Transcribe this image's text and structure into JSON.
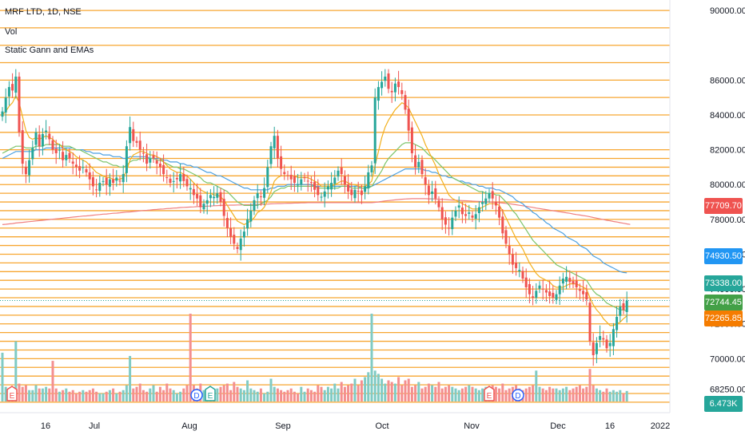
{
  "legend": {
    "symbol": "MRF LTD, 1D, NSE",
    "volume": "Vol",
    "indicator": "Static Gann and EMAs"
  },
  "colors": {
    "up": "#26a69a",
    "down": "#ef5350",
    "vol_up": "#80cbc4",
    "vol_down": "#f48f8f",
    "gann": "#f7a630",
    "ema_short": "#f2b01e",
    "ema_mid": "#7cc46b",
    "ema_long": "#4a9fe0",
    "ema_200": "#f08080"
  },
  "price_tags": [
    {
      "label": "77709.70",
      "value": 77709.7,
      "color": "#ef5350"
    },
    {
      "label": "74930.50",
      "value": 74930.5,
      "color": "#2196f3"
    },
    {
      "label": "73338.00",
      "value": 73338.0,
      "color": "#26a69a"
    },
    {
      "label": "72744.45",
      "value": 72744.45,
      "color": "#43a047"
    },
    {
      "label": "72265.85",
      "value": 72265.85,
      "color": "#f57c00"
    },
    {
      "label": "6.473K",
      "value": null,
      "color": "#26a69a"
    }
  ],
  "events": [
    {
      "label": "E",
      "type": "earnings",
      "color": "#ef5350",
      "x_label": "Jun 12"
    },
    {
      "label": "D",
      "type": "dividend",
      "color": "#2962ff",
      "x_label": "Aug 10"
    },
    {
      "label": "E",
      "type": "earnings",
      "color": "#26a69a",
      "x_label": "Aug 11"
    },
    {
      "label": "E",
      "type": "earnings",
      "color": "#ef5350",
      "x_label": "Nov 11"
    },
    {
      "label": "D",
      "type": "dividend",
      "color": "#2962ff",
      "x_label": "Nov 19"
    }
  ],
  "chart_data": {
    "type": "candlestick",
    "title": "MRF LTD, 1D, NSE",
    "x_ticks": [
      "16",
      "Jul",
      "Aug",
      "Sep",
      "Oct",
      "Nov",
      "Dec",
      "16",
      "2022"
    ],
    "y_ticks": [
      "90000.00",
      "86000.00",
      "84000.00",
      "82000.00",
      "80000.00",
      "78000.00",
      "76000.00",
      "74000.00",
      "72000.00",
      "70000.00",
      "68250.00"
    ],
    "y_range": [
      66900,
      90600
    ],
    "gann_levels": [
      90000,
      89000,
      88000,
      87000,
      86000,
      85000,
      84000,
      83000,
      82000,
      81500,
      81000,
      80500,
      80000,
      79500,
      79000,
      78500,
      78000,
      77500,
      77000,
      76500,
      76000,
      75500,
      75000,
      74500,
      74000,
      73500,
      73000,
      72500,
      72000,
      71500,
      71000,
      70500,
      70000,
      69500,
      69000,
      68500,
      68000,
      67500
    ],
    "close": [
      84200,
      85000,
      85600,
      85400,
      86200,
      83000,
      81200,
      80600,
      81400,
      82100,
      83000,
      82200,
      82900,
      83100,
      82600,
      82000,
      81800,
      82000,
      81400,
      81700,
      81500,
      81200,
      81000,
      80800,
      81000,
      80700,
      80300,
      79900,
      79700,
      80100,
      80200,
      80000,
      80300,
      80100,
      80400,
      80200,
      80600,
      82200,
      83300,
      82500,
      82400,
      82000,
      81800,
      81200,
      81500,
      81500,
      81200,
      81000,
      80600,
      80400,
      80100,
      80200,
      80300,
      80600,
      80200,
      79900,
      79800,
      79400,
      79200,
      78700,
      78900,
      79100,
      79400,
      79300,
      79500,
      79000,
      78200,
      77500,
      77000,
      76600,
      76300,
      76900,
      77300,
      78000,
      78500,
      79100,
      79500,
      79300,
      79800,
      81000,
      82200,
      82800,
      81500,
      80900,
      80600,
      80500,
      80300,
      80100,
      80000,
      80300,
      80400,
      80200,
      80100,
      79700,
      79400,
      79300,
      79600,
      79900,
      80100,
      80400,
      80800,
      80600,
      80000,
      79600,
      79400,
      79700,
      79600,
      79400,
      79900,
      80700,
      81100,
      85000,
      85600,
      85900,
      86200,
      85500,
      85300,
      85800,
      85600,
      85200,
      84300,
      83100,
      81800,
      81000,
      81300,
      80600,
      80000,
      79400,
      79600,
      79200,
      78700,
      78000,
      77700,
      77500,
      78100,
      78500,
      78800,
      78300,
      78200,
      78400,
      78100,
      78300,
      78700,
      79000,
      79200,
      79500,
      79200,
      78800,
      78100,
      77200,
      76600,
      76000,
      75400,
      75200,
      75100,
      74600,
      74100,
      73700,
      73500,
      73900,
      74200,
      74000,
      73800,
      73600,
      73500,
      73700,
      74200,
      74600,
      74700,
      74400,
      74300,
      74100,
      73900,
      73700,
      73400,
      71000,
      70200,
      70900,
      71300,
      71100,
      70600,
      70900,
      71700,
      72400,
      73000,
      72800,
      73338
    ],
    "volume": [
      30000,
      9000,
      8000,
      9000,
      37000,
      11000,
      9000,
      10000,
      7000,
      7000,
      10000,
      8000,
      8000,
      9000,
      8000,
      25000,
      8000,
      6000,
      7000,
      8000,
      6000,
      7000,
      5000,
      6000,
      7000,
      6000,
      7000,
      8000,
      6000,
      5000,
      5000,
      6000,
      7000,
      8000,
      5000,
      6000,
      7000,
      10000,
      28000,
      8000,
      9000,
      11000,
      7000,
      6000,
      8000,
      10000,
      6000,
      9000,
      7000,
      11000,
      8000,
      7000,
      5000,
      6000,
      8000,
      10000,
      54000,
      10000,
      8000,
      11000,
      7000,
      6000,
      5000,
      6000,
      8000,
      9000,
      10000,
      11000,
      7000,
      12000,
      9000,
      8000,
      7000,
      13000,
      8000,
      7000,
      6000,
      8000,
      5000,
      6000,
      14000,
      9000,
      8000,
      7000,
      6000,
      7000,
      8000,
      6000,
      5000,
      9000,
      6000,
      8000,
      7000,
      6000,
      10000,
      9000,
      7000,
      9000,
      8000,
      11000,
      8000,
      12000,
      9000,
      10000,
      11000,
      14000,
      10000,
      13000,
      15000,
      18000,
      54000,
      19000,
      17000,
      14000,
      11000,
      13000,
      12000,
      11000,
      15000,
      10000,
      13000,
      14000,
      9000,
      10000,
      12000,
      8000,
      9000,
      11000,
      10000,
      9000,
      12000,
      8000,
      9000,
      10000,
      9000,
      8000,
      7000,
      8000,
      9000,
      10000,
      9000,
      8000,
      7000,
      8000,
      9000,
      8000,
      10000,
      9000,
      8000,
      11000,
      7000,
      8000,
      9000,
      10000,
      8000,
      7000,
      8000,
      9000,
      10000,
      19000,
      9000,
      8000,
      7000,
      9000,
      8000,
      8000,
      7000,
      8000,
      9000,
      7000,
      8000,
      9000,
      10000,
      8000,
      9000,
      20000,
      10000,
      8000,
      7000,
      6000,
      8000,
      6000,
      7000,
      6000,
      7000,
      5000,
      6473
    ],
    "ema_short": [
      84000,
      84200,
      84500,
      84700,
      85100,
      84700,
      83900,
      83100,
      82700,
      82600,
      82700,
      82600,
      82700,
      82800,
      82700,
      82600,
      82400,
      82300,
      82100,
      82000,
      81900,
      81800,
      81600,
      81500,
      81400,
      81300,
      81100,
      80900,
      80700,
      80600,
      80500,
      80400,
      80400,
      80300,
      80300,
      80300,
      80400,
      80800,
      81400,
      81700,
      81800,
      81900,
      81900,
      81800,
      81700,
      81700,
      81600,
      81500,
      81300,
      81100,
      80900,
      80800,
      80700,
      80700,
      80600,
      80500,
      80300,
      80100,
      79900,
      79700,
      79600,
      79500,
      79500,
      79400,
      79400,
      79300,
      79100,
      78800,
      78500,
      78200,
      77900,
      77800,
      77700,
      77800,
      77900,
      78100,
      78400,
      78500,
      78700,
      79100,
      79600,
      80200,
      80400,
      80500,
      80500,
      80500,
      80500,
      80500,
      80400,
      80400,
      80400,
      80400,
      80300,
      80200,
      80100,
      79900,
      79900,
      79900,
      79900,
      80000,
      80100,
      80200,
      80200,
      80100,
      80000,
      80000,
      79900,
      79900,
      79900,
      80000,
      80200,
      81100,
      81900,
      82700,
      83300,
      83700,
      84000,
      84300,
      84500,
      84700,
      84600,
      84400,
      84000,
      83600,
      83200,
      82800,
      82300,
      81900,
      81500,
      81100,
      80600,
      80200,
      79800,
      79400,
      79200,
      79100,
      79000,
      78900,
      78800,
      78700,
      78600,
      78600,
      78600,
      78700,
      78800,
      78900,
      78900,
      78900,
      78800,
      78500,
      78100,
      77700,
      77300,
      76900,
      76600,
      76300,
      75900,
      75500,
      75200,
      74900,
      74700,
      74600,
      74500,
      74400,
      74200,
      74100,
      74100,
      74100,
      74200,
      74300,
      74300,
      74300,
      74200,
      74100,
      74000,
      73500,
      73100,
      72800,
      72600,
      72300,
      72100,
      71900,
      71900,
      72000,
      72100,
      72300,
      72450
    ],
    "ema_mid": [
      81800,
      81900,
      82000,
      82100,
      82200,
      82200,
      82200,
      82100,
      82100,
      82100,
      82200,
      82200,
      82200,
      82300,
      82300,
      82300,
      82300,
      82300,
      82200,
      82200,
      82200,
      82100,
      82000,
      82000,
      81900,
      81800,
      81700,
      81600,
      81500,
      81400,
      81300,
      81300,
      81200,
      81100,
      81100,
      81000,
      81000,
      81100,
      81300,
      81400,
      81400,
      81500,
      81500,
      81500,
      81500,
      81500,
      81400,
      81400,
      81300,
      81200,
      81100,
      81000,
      81000,
      80900,
      80900,
      80800,
      80700,
      80600,
      80500,
      80400,
      80200,
      80100,
      80100,
      80000,
      79900,
      79800,
      79700,
      79600,
      79400,
      79200,
      79000,
      78900,
      78800,
      78800,
      78800,
      78800,
      78800,
      78900,
      79000,
      79100,
      79300,
      79600,
      79700,
      79800,
      79800,
      79900,
      79900,
      79900,
      79900,
      79900,
      79900,
      79900,
      79900,
      79900,
      79800,
      79800,
      79800,
      79800,
      79800,
      79800,
      79800,
      79900,
      79900,
      79900,
      79800,
      79800,
      79800,
      79800,
      79800,
      79800,
      79900,
      80200,
      80500,
      80800,
      81200,
      81500,
      81700,
      81900,
      82100,
      82300,
      82400,
      82400,
      82400,
      82300,
      82200,
      82100,
      81900,
      81700,
      81600,
      81400,
      81200,
      81000,
      80800,
      80600,
      80400,
      80300,
      80200,
      80100,
      80000,
      79900,
      79800,
      79700,
      79600,
      79600,
      79500,
      79500,
      79500,
      79400,
      79400,
      79200,
      79000,
      78800,
      78500,
      78300,
      78000,
      77700,
      77400,
      77100,
      76800,
      76600,
      76400,
      76200,
      76000,
      75800,
      75600,
      75400,
      75300,
      75200,
      75100,
      75000,
      74900,
      74800,
      74700,
      74600,
      74500,
      74200,
      73900,
      73700,
      73600,
      73400,
      73200,
      73100,
      73000,
      72900,
      72800,
      72800,
      72744
    ],
    "ema_long": [
      81500,
      81600,
      81700,
      81800,
      81900,
      81900,
      81900,
      81900,
      81900,
      81900,
      82000,
      82000,
      82000,
      82100,
      82100,
      82100,
      82100,
      82100,
      82100,
      82100,
      82100,
      82100,
      82000,
      82000,
      82000,
      81900,
      81900,
      81800,
      81800,
      81800,
      81700,
      81700,
      81700,
      81600,
      81600,
      81600,
      81500,
      81500,
      81600,
      81600,
      81600,
      81600,
      81600,
      81600,
      81500,
      81500,
      81500,
      81500,
      81400,
      81400,
      81300,
      81300,
      81300,
      81200,
      81200,
      81100,
      81100,
      81000,
      81000,
      80900,
      80800,
      80700,
      80700,
      80600,
      80500,
      80500,
      80400,
      80300,
      80200,
      80100,
      80000,
      79900,
      79800,
      79800,
      79700,
      79700,
      79700,
      79700,
      79700,
      79700,
      79800,
      79800,
      79900,
      79900,
      79900,
      80000,
      80000,
      80000,
      80000,
      80000,
      80000,
      80000,
      80000,
      79900,
      79900,
      79900,
      79900,
      79900,
      79900,
      79900,
      79900,
      79900,
      79900,
      79900,
      79900,
      79900,
      79900,
      79800,
      79800,
      79900,
      79900,
      80000,
      80100,
      80200,
      80300,
      80400,
      80500,
      80600,
      80700,
      80800,
      80900,
      80900,
      80900,
      80900,
      80900,
      80900,
      80800,
      80800,
      80700,
      80700,
      80600,
      80500,
      80500,
      80400,
      80400,
      80300,
      80200,
      80200,
      80100,
      80100,
      80000,
      80000,
      79900,
      79900,
      79800,
      79800,
      79800,
      79700,
      79700,
      79600,
      79500,
      79400,
      79300,
      79100,
      79000,
      78900,
      78700,
      78600,
      78400,
      78300,
      78100,
      78000,
      77800,
      77700,
      77500,
      77400,
      77300,
      77200,
      77000,
      76900,
      76800,
      76700,
      76500,
      76400,
      76300,
      76100,
      75900,
      75800,
      75700,
      75500,
      75400,
      75300,
      75200,
      75100,
      75000,
      74950,
      74930
    ],
    "ema_200": [
      77700,
      77720,
      77740,
      77760,
      77790,
      77810,
      77830,
      77850,
      77870,
      77890,
      77910,
      77930,
      77950,
      77970,
      77990,
      78010,
      78030,
      78050,
      78070,
      78090,
      78110,
      78130,
      78150,
      78170,
      78190,
      78200,
      78220,
      78240,
      78260,
      78280,
      78300,
      78310,
      78330,
      78350,
      78360,
      78380,
      78400,
      78420,
      78430,
      78450,
      78470,
      78490,
      78510,
      78520,
      78540,
      78560,
      78570,
      78590,
      78600,
      78620,
      78630,
      78650,
      78660,
      78680,
      78690,
      78700,
      78710,
      78720,
      78730,
      78740,
      78750,
      78760,
      78770,
      78780,
      78790,
      78800,
      78810,
      78810,
      78820,
      78820,
      78830,
      78830,
      78840,
      78840,
      78850,
      78850,
      78860,
      78860,
      78870,
      78880,
      78890,
      78900,
      78910,
      78910,
      78920,
      78930,
      78930,
      78940,
      78940,
      78950,
      78950,
      78960,
      78960,
      78960,
      78960,
      78960,
      78960,
      78960,
      78960,
      78960,
      78960,
      78960,
      78960,
      78960,
      78960,
      78960,
      78960,
      78960,
      78960,
      78960,
      78960,
      78980,
      79000,
      79030,
      79060,
      79080,
      79100,
      79120,
      79140,
      79160,
      79170,
      79180,
      79190,
      79190,
      79190,
      79190,
      79190,
      79180,
      79180,
      79170,
      79160,
      79150,
      79140,
      79120,
      79110,
      79100,
      79090,
      79080,
      79070,
      79060,
      79050,
      79040,
      79030,
      79020,
      79010,
      79000,
      78990,
      78980,
      78960,
      78940,
      78920,
      78900,
      78870,
      78840,
      78810,
      78780,
      78750,
      78720,
      78690,
      78650,
      78620,
      78590,
      78560,
      78530,
      78500,
      78470,
      78440,
      78410,
      78380,
      78350,
      78310,
      78280,
      78250,
      78220,
      78190,
      78150,
      78110,
      78070,
      78030,
      77990,
      77950,
      77920,
      77880,
      77850,
      77810,
      77780,
      77740,
      77710
    ]
  }
}
